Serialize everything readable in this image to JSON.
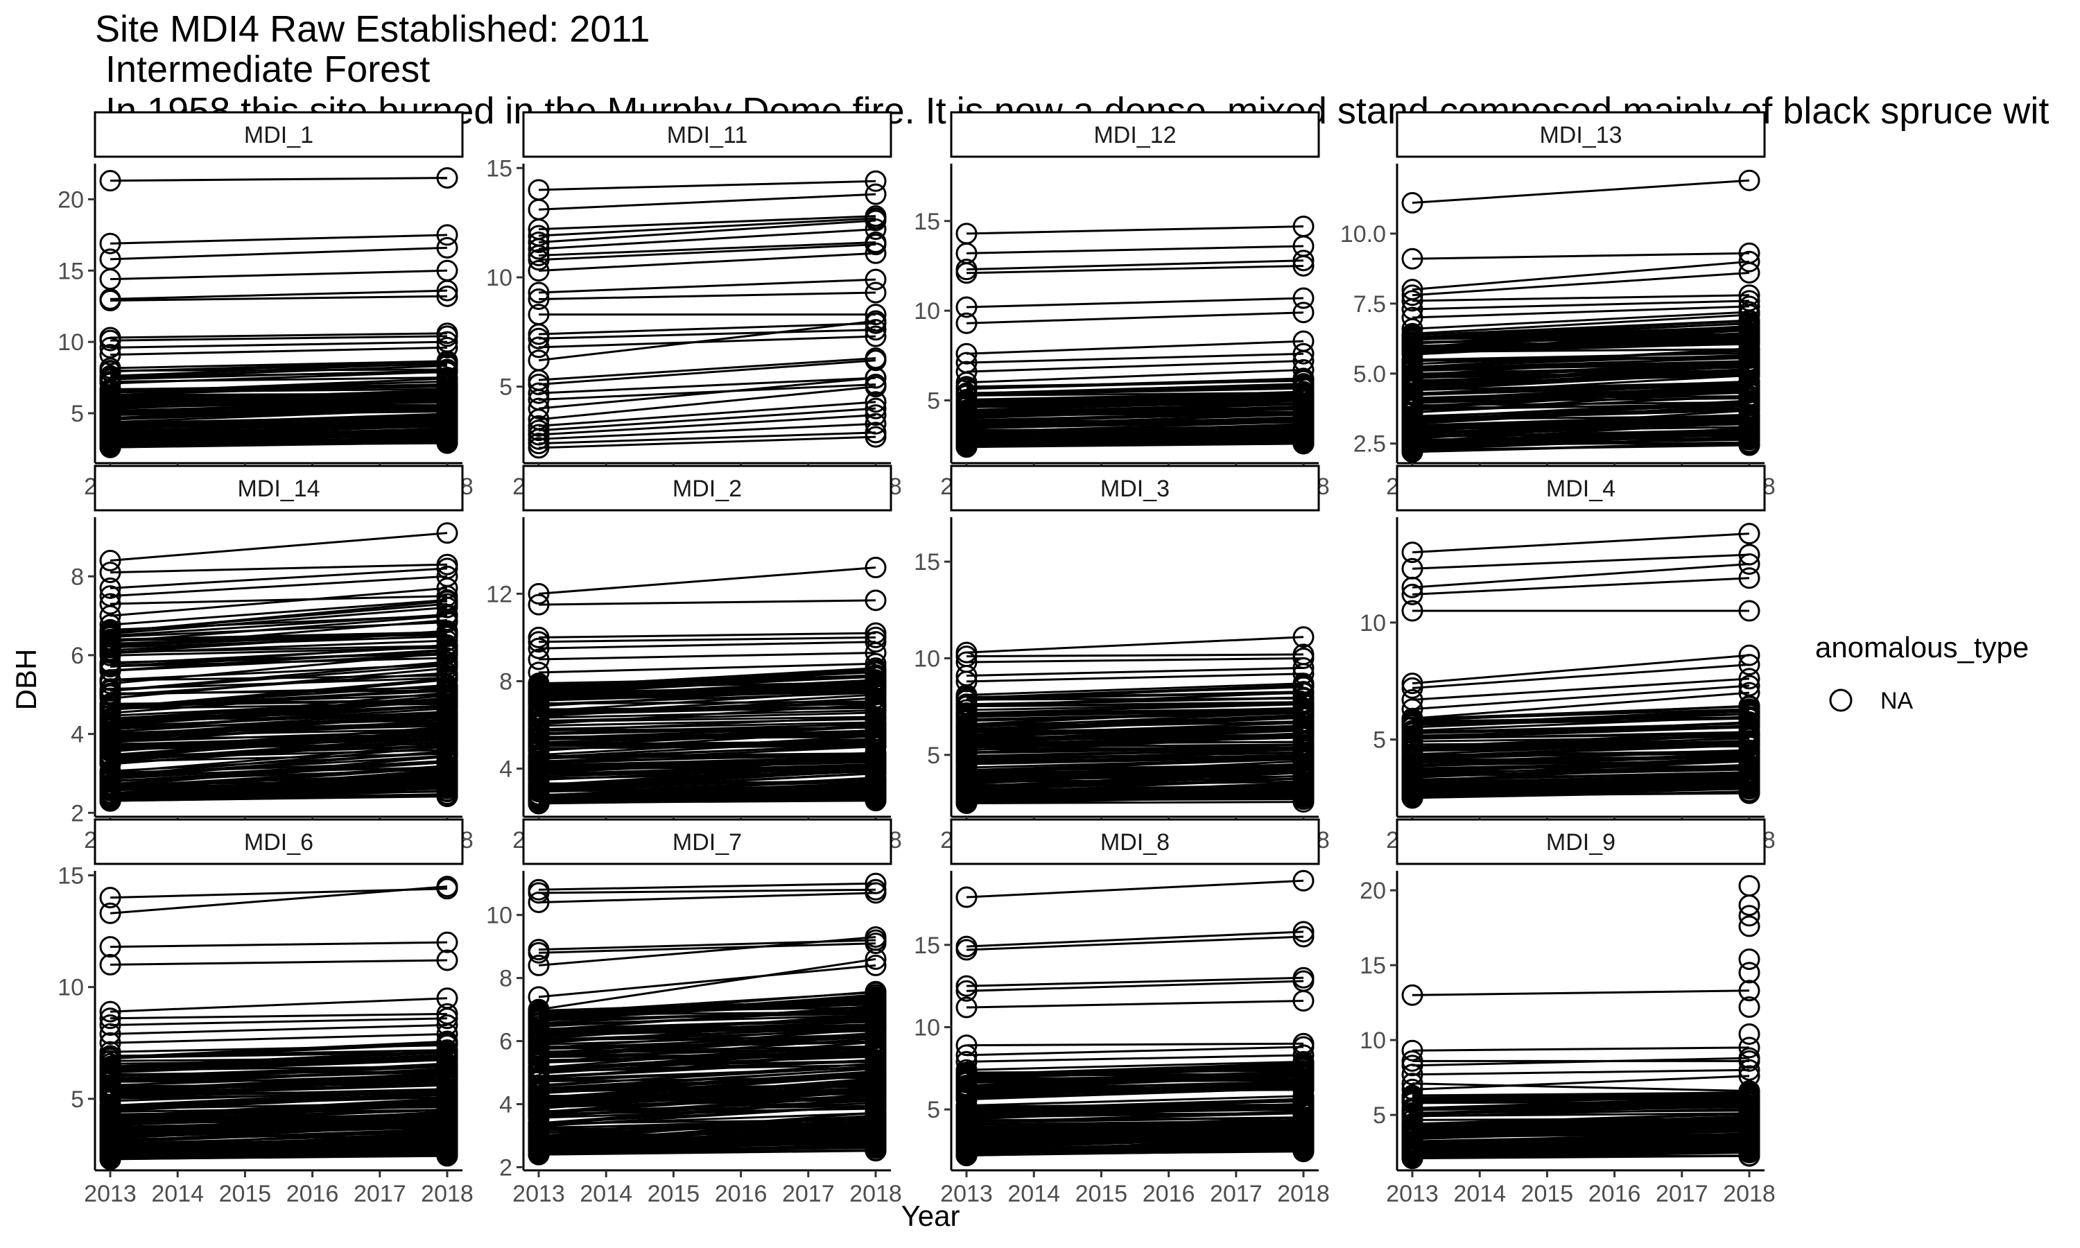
{
  "title_lines": [
    "Site MDI4 Raw Established: 2011",
    " Intermediate Forest",
    " In 1958 this site burned in the Murphy Dome fire. It is now a dense, mixed stand composed mainly of black spruce wit"
  ],
  "chart_data": {
    "type": "line",
    "xlabel": "Year",
    "ylabel": "DBH",
    "x_ticks": [
      "2013",
      "2014",
      "2015",
      "2016",
      "2017",
      "2018"
    ],
    "xlim": [
      2013,
      2018
    ],
    "grid": false,
    "legend": {
      "title": "anomalous_type",
      "entries": [
        "NA"
      ],
      "placement": "right",
      "marker": "open-circle"
    },
    "panels": [
      {
        "name": "MDI_1",
        "ylim": [
          1.5,
          22.5
        ],
        "y_ticks": [
          "5",
          "10",
          "15",
          "20"
        ],
        "pairs": [
          [
            21.3,
            21.5
          ],
          [
            16.9,
            17.5
          ],
          [
            15.8,
            16.6
          ],
          [
            14.4,
            15.0
          ],
          [
            13.0,
            13.6
          ],
          [
            12.9,
            13.2
          ],
          [
            10.3,
            10.6
          ],
          [
            10.1,
            10.4
          ],
          [
            9.6,
            10.0
          ],
          [
            9.1,
            9.6
          ]
        ],
        "bulk": {
          "count": 110,
          "lo": 2.6,
          "hi": 8.2
        }
      },
      {
        "name": "MDI_11",
        "ylim": [
          1.5,
          15.2
        ],
        "y_ticks": [
          "5",
          "10",
          "15"
        ],
        "pairs": [
          [
            14.0,
            14.4
          ],
          [
            13.1,
            13.8
          ],
          [
            12.2,
            12.8
          ],
          [
            11.9,
            12.7
          ],
          [
            11.6,
            12.6
          ],
          [
            11.3,
            12.2
          ],
          [
            11.0,
            11.6
          ],
          [
            10.8,
            11.5
          ],
          [
            10.3,
            11.1
          ],
          [
            9.3,
            9.9
          ],
          [
            9.0,
            9.3
          ],
          [
            8.3,
            8.3
          ],
          [
            7.4,
            7.9
          ],
          [
            7.2,
            7.6
          ],
          [
            6.8,
            7.3
          ],
          [
            6.2,
            8.0
          ],
          [
            5.3,
            6.3
          ],
          [
            5.1,
            6.2
          ],
          [
            4.7,
            5.4
          ],
          [
            4.4,
            5.1
          ],
          [
            4.0,
            5.4
          ],
          [
            3.5,
            5.0
          ],
          [
            3.2,
            4.3
          ],
          [
            3.0,
            4.0
          ],
          [
            2.8,
            3.7
          ],
          [
            2.6,
            3.3
          ],
          [
            2.4,
            2.9
          ],
          [
            2.2,
            2.7
          ]
        ],
        "bulk": {
          "count": 0,
          "lo": 0,
          "hi": 0
        }
      },
      {
        "name": "MDI_12",
        "ylim": [
          1.5,
          18.2
        ],
        "y_ticks": [
          "5",
          "10",
          "15"
        ],
        "pairs": [
          [
            14.3,
            14.7
          ],
          [
            13.2,
            13.6
          ],
          [
            12.3,
            12.8
          ],
          [
            12.1,
            12.5
          ],
          [
            10.2,
            10.7
          ],
          [
            9.3,
            9.9
          ],
          [
            7.6,
            8.3
          ],
          [
            7.1,
            7.6
          ],
          [
            6.6,
            7.2
          ],
          [
            6.0,
            6.7
          ]
        ],
        "bulk": {
          "count": 100,
          "lo": 2.4,
          "hi": 5.8
        }
      },
      {
        "name": "MDI_13",
        "ylim": [
          1.8,
          12.5
        ],
        "y_ticks": [
          "2.5",
          "5.0",
          "7.5",
          "10.0"
        ],
        "pairs": [
          [
            11.1,
            11.9
          ],
          [
            9.1,
            9.3
          ],
          [
            8.0,
            9.0
          ],
          [
            7.8,
            8.6
          ],
          [
            7.6,
            7.8
          ],
          [
            7.3,
            7.6
          ],
          [
            7.0,
            7.4
          ],
          [
            6.6,
            7.2
          ],
          [
            6.2,
            6.8
          ]
        ],
        "bulk": {
          "count": 140,
          "lo": 2.2,
          "hi": 6.5
        }
      },
      {
        "name": "MDI_14",
        "ylim": [
          1.9,
          9.5
        ],
        "y_ticks": [
          "2",
          "4",
          "6",
          "8"
        ],
        "pairs": [
          [
            8.4,
            9.1
          ],
          [
            8.1,
            8.3
          ],
          [
            7.7,
            8.2
          ],
          [
            7.5,
            8.0
          ],
          [
            7.3,
            7.5
          ],
          [
            7.0,
            7.7
          ],
          [
            6.6,
            7.3
          ]
        ],
        "bulk": {
          "count": 160,
          "lo": 2.3,
          "hi": 6.8
        }
      },
      {
        "name": "MDI_2",
        "ylim": [
          1.8,
          15.5
        ],
        "y_ticks": [
          "4",
          "8",
          "12"
        ],
        "pairs": [
          [
            12.0,
            13.2
          ],
          [
            11.5,
            11.7
          ],
          [
            10.0,
            10.2
          ],
          [
            9.8,
            10.0
          ],
          [
            9.5,
            9.8
          ],
          [
            9.0,
            9.3
          ],
          [
            8.4,
            8.8
          ],
          [
            7.9,
            8.2
          ]
        ],
        "bulk": {
          "count": 150,
          "lo": 2.4,
          "hi": 8.0
        }
      },
      {
        "name": "MDI_3",
        "ylim": [
          1.8,
          17.3
        ],
        "y_ticks": [
          "5",
          "10",
          "15"
        ],
        "pairs": [
          [
            10.3,
            11.1
          ],
          [
            10.1,
            10.2
          ],
          [
            9.8,
            10.0
          ],
          [
            9.1,
            9.5
          ],
          [
            8.8,
            9.2
          ],
          [
            8.1,
            8.7
          ]
        ],
        "bulk": {
          "count": 130,
          "lo": 2.5,
          "hi": 8.0
        }
      },
      {
        "name": "MDI_4",
        "ylim": [
          1.7,
          14.5
        ],
        "y_ticks": [
          "5",
          "10"
        ],
        "pairs": [
          [
            13.0,
            13.8
          ],
          [
            12.3,
            12.9
          ],
          [
            11.5,
            12.5
          ],
          [
            11.2,
            11.9
          ],
          [
            10.5,
            10.5
          ],
          [
            7.4,
            8.6
          ],
          [
            7.2,
            8.2
          ],
          [
            6.7,
            7.6
          ],
          [
            6.3,
            7.3
          ],
          [
            5.9,
            7.0
          ]
        ],
        "bulk": {
          "count": 110,
          "lo": 2.5,
          "hi": 6.0
        }
      },
      {
        "name": "MDI_6",
        "ylim": [
          1.8,
          15.2
        ],
        "y_ticks": [
          "5",
          "10",
          "15"
        ],
        "pairs": [
          [
            14.0,
            14.4
          ],
          [
            13.3,
            14.5
          ],
          [
            11.8,
            12.0
          ],
          [
            11.0,
            11.2
          ],
          [
            8.9,
            9.5
          ],
          [
            8.6,
            8.8
          ],
          [
            8.3,
            8.6
          ],
          [
            7.9,
            8.3
          ],
          [
            7.5,
            7.9
          ],
          [
            7.1,
            7.4
          ]
        ],
        "bulk": {
          "count": 160,
          "lo": 2.3,
          "hi": 7.0
        }
      },
      {
        "name": "MDI_7",
        "ylim": [
          1.9,
          11.4
        ],
        "y_ticks": [
          "2",
          "4",
          "6",
          "8",
          "10"
        ],
        "pairs": [
          [
            10.8,
            11.0
          ],
          [
            10.7,
            10.8
          ],
          [
            10.4,
            10.7
          ],
          [
            8.9,
            9.2
          ],
          [
            8.8,
            9.1
          ],
          [
            8.4,
            9.3
          ],
          [
            7.4,
            8.4
          ],
          [
            7.0,
            8.6
          ],
          [
            6.8,
            7.4
          ]
        ],
        "bulk": {
          "count": 180,
          "lo": 2.4,
          "hi": 7.0
        }
      },
      {
        "name": "MDI_8",
        "ylim": [
          1.3,
          19.5
        ],
        "y_ticks": [
          "5",
          "10",
          "15"
        ],
        "pairs": [
          [
            17.9,
            18.9
          ],
          [
            14.9,
            15.8
          ],
          [
            14.7,
            15.5
          ],
          [
            12.5,
            13.0
          ],
          [
            12.2,
            12.8
          ],
          [
            11.2,
            11.6
          ],
          [
            8.9,
            9.0
          ],
          [
            8.3,
            8.8
          ],
          [
            7.9,
            8.3
          ],
          [
            7.4,
            7.9
          ]
        ],
        "bulk": {
          "count": 130,
          "lo": 2.2,
          "hi": 7.3
        }
      },
      {
        "name": "MDI_9",
        "ylim": [
          1.3,
          21.3
        ],
        "y_ticks": [
          "5",
          "10",
          "15",
          "20"
        ],
        "pairs": [
          [
            13.0,
            13.3
          ],
          [
            9.3,
            9.5
          ],
          [
            8.6,
            8.6
          ],
          [
            8.3,
            8.8
          ],
          [
            7.7,
            8.0
          ],
          [
            7.1,
            6.6
          ],
          [
            6.7,
            7.6
          ]
        ],
        "bulk": {
          "count": 110,
          "lo": 2.1,
          "hi": 6.3
        },
        "extra_points_2018": [
          20.3,
          19.0,
          18.3,
          17.6,
          15.4,
          14.5,
          12.2,
          10.4
        ]
      }
    ]
  }
}
